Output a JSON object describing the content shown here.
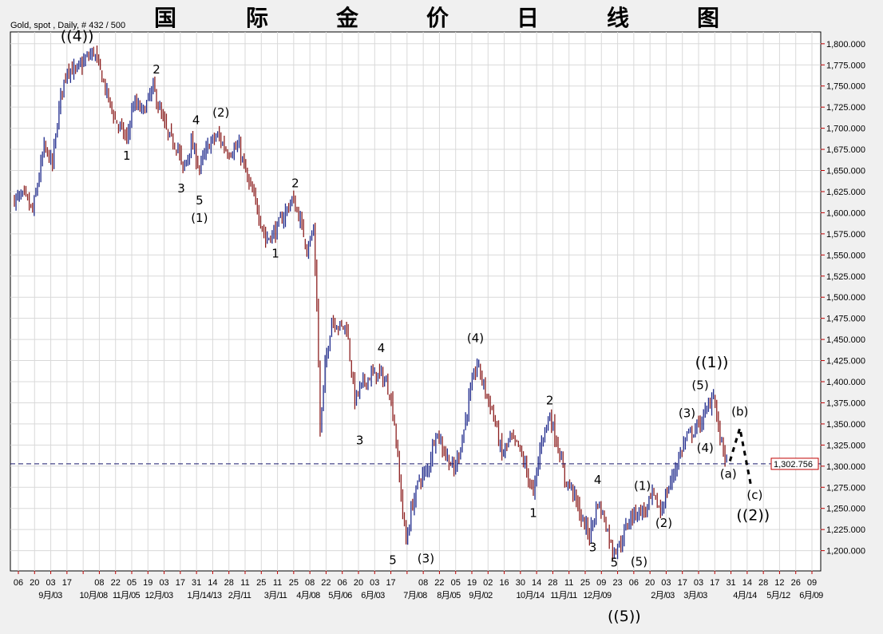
{
  "header": {
    "subtitle": "Gold, spot , Daily, # 432 / 500",
    "title_chars": [
      "国",
      "际",
      "金",
      "价",
      "日",
      "线",
      "图"
    ]
  },
  "chart_data": {
    "type": "ohlc",
    "instrument": "Gold, spot",
    "interval": "Daily",
    "bars_shown": 432,
    "bars_total": 500,
    "ylim": [
      1176,
      1814
    ],
    "yticks": [
      1200,
      1225,
      1250,
      1275,
      1300,
      1325,
      1350,
      1375,
      1400,
      1425,
      1450,
      1475,
      1500,
      1525,
      1550,
      1575,
      1600,
      1625,
      1650,
      1675,
      1700,
      1725,
      1750,
      1775,
      1800
    ],
    "ytick_labels": [
      "1,200.000",
      "1,225.000",
      "1,250.000",
      "1,275.000",
      "1,300.000",
      "1,325.000",
      "1,350.000",
      "1,375.000",
      "1,400.000",
      "1,425.000",
      "1,450.000",
      "1,475.000",
      "1,500.000",
      "1,525.000",
      "1,550.000",
      "1,575.000",
      "1,600.000",
      "1,625.000",
      "1,650.000",
      "1,675.000",
      "1,700.000",
      "1,725.000",
      "1,750.000",
      "1,775.000",
      "1,800.000"
    ],
    "grid": true,
    "current_price": 1302.756,
    "current_price_label": "1,302.756",
    "xtick_day_labels": [
      "06",
      "20",
      "03",
      "17",
      "",
      "08",
      "22",
      "05",
      "19",
      "03",
      "17",
      "31",
      "14",
      "28",
      "11",
      "25",
      "11",
      "25",
      "08",
      "22",
      "06",
      "20",
      "03",
      "17",
      "",
      "08",
      "22",
      "05",
      "19",
      "02",
      "16",
      "30",
      "14",
      "28",
      "11",
      "25",
      "09",
      "23",
      "06",
      "20",
      "03",
      "17",
      "03",
      "17",
      "31",
      "14",
      "28",
      "12",
      "26",
      "09"
    ],
    "xtick_month_labels": [
      "9月/03",
      "10月/08",
      "11月/05",
      "12月/03",
      "1月/14/13",
      "2月/11",
      "3月/11",
      "4月/08",
      "5月/06",
      "6月/03",
      "7月/08",
      "8月/05",
      "9月/02",
      "10月/14",
      "11月/11",
      "12月/09",
      "2月/03",
      "3月/03",
      "4月/14",
      "5月/12",
      "6月/09"
    ],
    "price_path": [
      [
        0,
        1616
      ],
      [
        6,
        1620
      ],
      [
        11,
        1601
      ],
      [
        18,
        1677
      ],
      [
        23,
        1658
      ],
      [
        28,
        1739
      ],
      [
        32,
        1772
      ],
      [
        37,
        1767
      ],
      [
        43,
        1781
      ],
      [
        48,
        1791
      ],
      [
        52,
        1767
      ],
      [
        57,
        1734
      ],
      [
        61,
        1710
      ],
      [
        68,
        1687
      ],
      [
        72,
        1729
      ],
      [
        78,
        1720
      ],
      [
        84,
        1748
      ],
      [
        88,
        1720
      ],
      [
        93,
        1691
      ],
      [
        99,
        1677
      ],
      [
        102,
        1649
      ],
      [
        107,
        1682
      ],
      [
        112,
        1653
      ],
      [
        118,
        1682
      ],
      [
        123,
        1691
      ],
      [
        129,
        1672
      ],
      [
        136,
        1677
      ],
      [
        141,
        1639
      ],
      [
        147,
        1606
      ],
      [
        152,
        1568
      ],
      [
        158,
        1578
      ],
      [
        163,
        1597
      ],
      [
        168,
        1616
      ],
      [
        172,
        1597
      ],
      [
        177,
        1559
      ],
      [
        181,
        1578
      ],
      [
        183,
        1493
      ],
      [
        185,
        1342
      ],
      [
        188,
        1417
      ],
      [
        192,
        1474
      ],
      [
        197,
        1465
      ],
      [
        201,
        1465
      ],
      [
        206,
        1379
      ],
      [
        211,
        1398
      ],
      [
        216,
        1408
      ],
      [
        222,
        1408
      ],
      [
        227,
        1389
      ],
      [
        230,
        1351
      ],
      [
        233,
        1285
      ],
      [
        237,
        1209
      ],
      [
        240,
        1247
      ],
      [
        245,
        1285
      ],
      [
        250,
        1294
      ],
      [
        255,
        1342
      ],
      [
        259,
        1323
      ],
      [
        266,
        1294
      ],
      [
        271,
        1332
      ],
      [
        275,
        1379
      ],
      [
        280,
        1422
      ],
      [
        285,
        1389
      ],
      [
        290,
        1360
      ],
      [
        295,
        1313
      ],
      [
        300,
        1332
      ],
      [
        305,
        1323
      ],
      [
        310,
        1294
      ],
      [
        314,
        1266
      ],
      [
        319,
        1332
      ],
      [
        324,
        1360
      ],
      [
        329,
        1323
      ],
      [
        333,
        1285
      ],
      [
        338,
        1271
      ],
      [
        343,
        1238
      ],
      [
        348,
        1219
      ],
      [
        353,
        1257
      ],
      [
        357,
        1238
      ],
      [
        362,
        1200
      ],
      [
        367,
        1209
      ],
      [
        372,
        1238
      ],
      [
        377,
        1247
      ],
      [
        382,
        1247
      ],
      [
        386,
        1266
      ],
      [
        391,
        1247
      ],
      [
        396,
        1275
      ],
      [
        401,
        1304
      ],
      [
        406,
        1332
      ],
      [
        411,
        1342
      ],
      [
        415,
        1351
      ],
      [
        420,
        1370
      ],
      [
        423,
        1389
      ],
      [
        426,
        1342
      ],
      [
        431,
        1306
      ]
    ],
    "projection": [
      [
        433,
        1306
      ],
      [
        439,
        1345
      ],
      [
        446,
        1274
      ]
    ],
    "wave_labels": [
      {
        "text": "((4))",
        "bar": 38,
        "price": 1803,
        "big": true
      },
      {
        "text": "2",
        "bar": 86,
        "price": 1765
      },
      {
        "text": "1",
        "bar": 68,
        "price": 1663
      },
      {
        "text": "4",
        "bar": 110,
        "price": 1705
      },
      {
        "text": "(2)",
        "bar": 125,
        "price": 1714
      },
      {
        "text": "3",
        "bar": 101,
        "price": 1624
      },
      {
        "text": "5",
        "bar": 112,
        "price": 1610
      },
      {
        "text": "(1)",
        "bar": 112,
        "price": 1589
      },
      {
        "text": "2",
        "bar": 170,
        "price": 1630
      },
      {
        "text": "1",
        "bar": 158,
        "price": 1547
      },
      {
        "text": "4",
        "bar": 222,
        "price": 1435
      },
      {
        "text": "3",
        "bar": 209,
        "price": 1326
      },
      {
        "text": "5",
        "bar": 229,
        "price": 1184
      },
      {
        "text": "(3)",
        "bar": 249,
        "price": 1186
      },
      {
        "text": "(4)",
        "bar": 279,
        "price": 1447
      },
      {
        "text": "2",
        "bar": 324,
        "price": 1373
      },
      {
        "text": "1",
        "bar": 314,
        "price": 1240
      },
      {
        "text": "4",
        "bar": 353,
        "price": 1279
      },
      {
        "text": "3",
        "bar": 350,
        "price": 1199
      },
      {
        "text": "5",
        "bar": 363,
        "price": 1181
      },
      {
        "text": "((5))",
        "bar": 369,
        "price": 1157,
        "big": true
      },
      {
        "text": "(5)",
        "bar": 378,
        "price": 1182
      },
      {
        "text": "(1)",
        "bar": 380,
        "price": 1272
      },
      {
        "text": "(2)",
        "bar": 393,
        "price": 1228
      },
      {
        "text": "(3)",
        "bar": 407,
        "price": 1358
      },
      {
        "text": "(4)",
        "bar": 418,
        "price": 1317
      },
      {
        "text": "(5)",
        "bar": 415,
        "price": 1391
      },
      {
        "text": "((1))",
        "bar": 422,
        "price": 1417,
        "big": true
      },
      {
        "text": "(a)",
        "bar": 432,
        "price": 1286
      },
      {
        "text": "(b)",
        "bar": 439,
        "price": 1360
      },
      {
        "text": "(c)",
        "bar": 448,
        "price": 1261
      },
      {
        "text": "((2))",
        "bar": 447,
        "price": 1236,
        "big": true
      }
    ],
    "colors": {
      "up": "#1f2a8c",
      "down": "#8c1f1f",
      "current_line": "#1a1a6e",
      "current_box": "#c00000",
      "grid": "#d9d9d9"
    }
  }
}
